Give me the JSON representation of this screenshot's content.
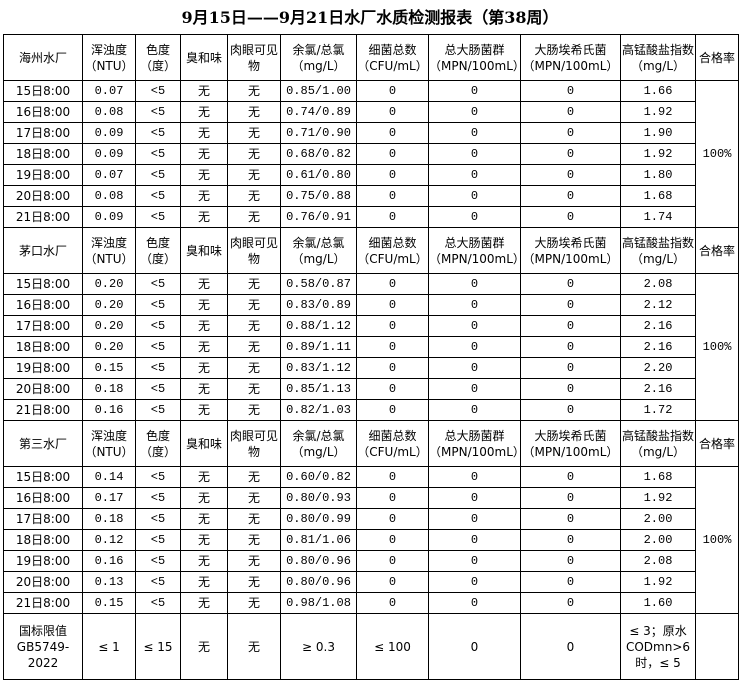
{
  "title": "9月15日——9月21日水厂水质检测报表（第38周）",
  "headers": [
    "浑浊度（NTU）",
    "色度（度）",
    "臭和味",
    "肉眼可见物",
    "余氯/总氯（mg/L）",
    "细菌总数（CFU/mL）",
    "总大肠菌群（MPN/100mL）",
    "大肠埃希氏菌（MPN/100mL）",
    "高锰酸盐指数（mg/L）",
    "合格率"
  ],
  "plants": [
    {
      "name": "海州水厂",
      "pass_rate": "100%",
      "rows": [
        [
          "15日8:00",
          "0.07",
          "<5",
          "无",
          "无",
          "0.85/1.00",
          "0",
          "0",
          "0",
          "1.66"
        ],
        [
          "16日8:00",
          "0.08",
          "<5",
          "无",
          "无",
          "0.74/0.89",
          "0",
          "0",
          "0",
          "1.92"
        ],
        [
          "17日8:00",
          "0.09",
          "<5",
          "无",
          "无",
          "0.71/0.90",
          "0",
          "0",
          "0",
          "1.90"
        ],
        [
          "18日8:00",
          "0.09",
          "<5",
          "无",
          "无",
          "0.68/0.82",
          "0",
          "0",
          "0",
          "1.92"
        ],
        [
          "19日8:00",
          "0.07",
          "<5",
          "无",
          "无",
          "0.61/0.80",
          "0",
          "0",
          "0",
          "1.80"
        ],
        [
          "20日8:00",
          "0.08",
          "<5",
          "无",
          "无",
          "0.75/0.88",
          "0",
          "0",
          "0",
          "1.68"
        ],
        [
          "21日8:00",
          "0.09",
          "<5",
          "无",
          "无",
          "0.76/0.91",
          "0",
          "0",
          "0",
          "1.74"
        ]
      ]
    },
    {
      "name": "茅口水厂",
      "pass_rate": "100%",
      "rows": [
        [
          "15日8:00",
          "0.20",
          "<5",
          "无",
          "无",
          "0.58/0.87",
          "0",
          "0",
          "0",
          "2.08"
        ],
        [
          "16日8:00",
          "0.20",
          "<5",
          "无",
          "无",
          "0.83/0.89",
          "0",
          "0",
          "0",
          "2.12"
        ],
        [
          "17日8:00",
          "0.20",
          "<5",
          "无",
          "无",
          "0.88/1.12",
          "0",
          "0",
          "0",
          "2.16"
        ],
        [
          "18日8:00",
          "0.20",
          "<5",
          "无",
          "无",
          "0.89/1.11",
          "0",
          "0",
          "0",
          "2.16"
        ],
        [
          "19日8:00",
          "0.15",
          "<5",
          "无",
          "无",
          "0.83/1.12",
          "0",
          "0",
          "0",
          "2.20"
        ],
        [
          "20日8:00",
          "0.18",
          "<5",
          "无",
          "无",
          "0.85/1.13",
          "0",
          "0",
          "0",
          "2.16"
        ],
        [
          "21日8:00",
          "0.16",
          "<5",
          "无",
          "无",
          "0.82/1.03",
          "0",
          "0",
          "0",
          "1.72"
        ]
      ]
    },
    {
      "name": "第三水厂",
      "pass_rate": "100%",
      "rows": [
        [
          "15日8:00",
          "0.14",
          "<5",
          "无",
          "无",
          "0.60/0.82",
          "0",
          "0",
          "0",
          "1.68"
        ],
        [
          "16日8:00",
          "0.17",
          "<5",
          "无",
          "无",
          "0.80/0.93",
          "0",
          "0",
          "0",
          "1.92"
        ],
        [
          "17日8:00",
          "0.18",
          "<5",
          "无",
          "无",
          "0.80/0.99",
          "0",
          "0",
          "0",
          "2.00"
        ],
        [
          "18日8:00",
          "0.12",
          "<5",
          "无",
          "无",
          "0.81/1.06",
          "0",
          "0",
          "0",
          "2.00"
        ],
        [
          "19日8:00",
          "0.16",
          "<5",
          "无",
          "无",
          "0.80/0.96",
          "0",
          "0",
          "0",
          "2.08"
        ],
        [
          "20日8:00",
          "0.13",
          "<5",
          "无",
          "无",
          "0.80/0.96",
          "0",
          "0",
          "0",
          "1.92"
        ],
        [
          "21日8:00",
          "0.15",
          "<5",
          "无",
          "无",
          "0.98/1.08",
          "0",
          "0",
          "0",
          "1.60"
        ]
      ]
    }
  ],
  "limits": {
    "label": "国标限值GB5749-2022",
    "values": [
      "≤ 1",
      "≤ 15",
      "无",
      "无",
      "≥ 0.3",
      "≤ 100",
      "0",
      "0",
      "≤ 3；原水CODmn>6时，≤ 5",
      ""
    ]
  }
}
